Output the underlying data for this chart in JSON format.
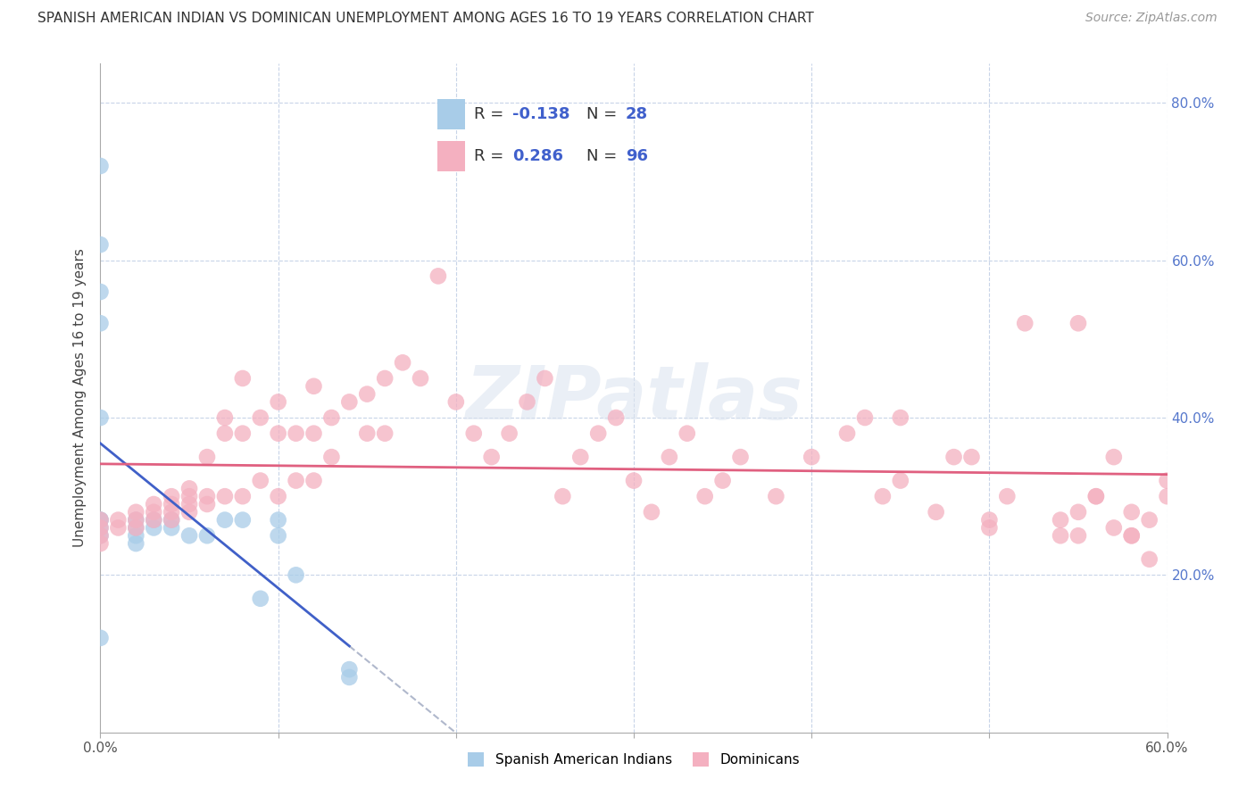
{
  "title": "SPANISH AMERICAN INDIAN VS DOMINICAN UNEMPLOYMENT AMONG AGES 16 TO 19 YEARS CORRELATION CHART",
  "source": "Source: ZipAtlas.com",
  "ylabel": "Unemployment Among Ages 16 to 19 years",
  "xlim": [
    0.0,
    60.0
  ],
  "ylim": [
    0.0,
    85.0
  ],
  "xticks": [
    0.0,
    10.0,
    20.0,
    30.0,
    40.0,
    50.0,
    60.0
  ],
  "xticklabels": [
    "0.0%",
    "",
    "",
    "",
    "",
    "",
    "60.0%"
  ],
  "yticks": [
    0.0,
    20.0,
    40.0,
    60.0,
    80.0
  ],
  "yticklabels_right": [
    "",
    "20.0%",
    "40.0%",
    "60.0%",
    "80.0%"
  ],
  "blue_color": "#a8cce8",
  "pink_color": "#f4b0c0",
  "blue_line_color": "#4060c8",
  "pink_line_color": "#e06080",
  "dashed_line_color": "#b0b8cc",
  "grid_color": "#c8d4e8",
  "background_color": "#ffffff",
  "watermark": "ZIPatlas",
  "legend_r_blue": "-0.138",
  "legend_n_blue": "28",
  "legend_r_pink": "0.286",
  "legend_n_pink": "96",
  "legend_label_blue": "Spanish American Indians",
  "legend_label_pink": "Dominicans",
  "blue_points_x": [
    0.0,
    0.0,
    0.0,
    0.0,
    0.0,
    0.0,
    0.0,
    0.0,
    0.0,
    0.0,
    2.0,
    2.0,
    2.0,
    2.0,
    3.0,
    3.0,
    4.0,
    4.0,
    5.0,
    6.0,
    7.0,
    8.0,
    9.0,
    10.0,
    10.0,
    11.0,
    14.0,
    14.0
  ],
  "blue_points_y": [
    72.0,
    62.0,
    56.0,
    52.0,
    40.0,
    27.0,
    27.0,
    26.0,
    25.0,
    12.0,
    27.0,
    26.0,
    25.0,
    24.0,
    27.0,
    26.0,
    27.0,
    26.0,
    25.0,
    25.0,
    27.0,
    27.0,
    17.0,
    27.0,
    25.0,
    20.0,
    8.0,
    7.0
  ],
  "pink_points_x": [
    0.0,
    0.0,
    0.0,
    0.0,
    1.0,
    1.0,
    2.0,
    2.0,
    2.0,
    3.0,
    3.0,
    3.0,
    4.0,
    4.0,
    4.0,
    4.0,
    5.0,
    5.0,
    5.0,
    5.0,
    6.0,
    6.0,
    6.0,
    7.0,
    7.0,
    7.0,
    8.0,
    8.0,
    8.0,
    9.0,
    9.0,
    10.0,
    10.0,
    10.0,
    11.0,
    11.0,
    12.0,
    12.0,
    12.0,
    13.0,
    13.0,
    14.0,
    15.0,
    15.0,
    16.0,
    16.0,
    17.0,
    18.0,
    19.0,
    20.0,
    21.0,
    22.0,
    23.0,
    24.0,
    25.0,
    26.0,
    27.0,
    28.0,
    29.0,
    30.0,
    31.0,
    32.0,
    33.0,
    34.0,
    35.0,
    36.0,
    38.0,
    40.0,
    42.0,
    44.0,
    45.0,
    47.0,
    49.0,
    51.0,
    52.0,
    54.0,
    55.0,
    56.0,
    57.0,
    58.0,
    59.0,
    60.0,
    43.0,
    50.0,
    54.0,
    56.0,
    58.0,
    59.0,
    60.0,
    55.0,
    57.0,
    45.0,
    48.0,
    50.0,
    55.0,
    58.0
  ],
  "pink_points_y": [
    27.0,
    26.0,
    25.0,
    24.0,
    27.0,
    26.0,
    28.0,
    27.0,
    26.0,
    29.0,
    28.0,
    27.0,
    30.0,
    29.0,
    28.0,
    27.0,
    31.0,
    30.0,
    29.0,
    28.0,
    35.0,
    30.0,
    29.0,
    40.0,
    38.0,
    30.0,
    45.0,
    38.0,
    30.0,
    40.0,
    32.0,
    42.0,
    38.0,
    30.0,
    38.0,
    32.0,
    44.0,
    38.0,
    32.0,
    40.0,
    35.0,
    42.0,
    43.0,
    38.0,
    45.0,
    38.0,
    47.0,
    45.0,
    58.0,
    42.0,
    38.0,
    35.0,
    38.0,
    42.0,
    45.0,
    30.0,
    35.0,
    38.0,
    40.0,
    32.0,
    28.0,
    35.0,
    38.0,
    30.0,
    32.0,
    35.0,
    30.0,
    35.0,
    38.0,
    30.0,
    32.0,
    28.0,
    35.0,
    30.0,
    52.0,
    27.0,
    25.0,
    30.0,
    35.0,
    28.0,
    27.0,
    30.0,
    40.0,
    27.0,
    25.0,
    30.0,
    25.0,
    22.0,
    32.0,
    52.0,
    26.0,
    40.0,
    35.0,
    26.0,
    28.0,
    25.0
  ],
  "title_fontsize": 11,
  "source_fontsize": 10,
  "axis_fontsize": 11,
  "ylabel_fontsize": 11
}
